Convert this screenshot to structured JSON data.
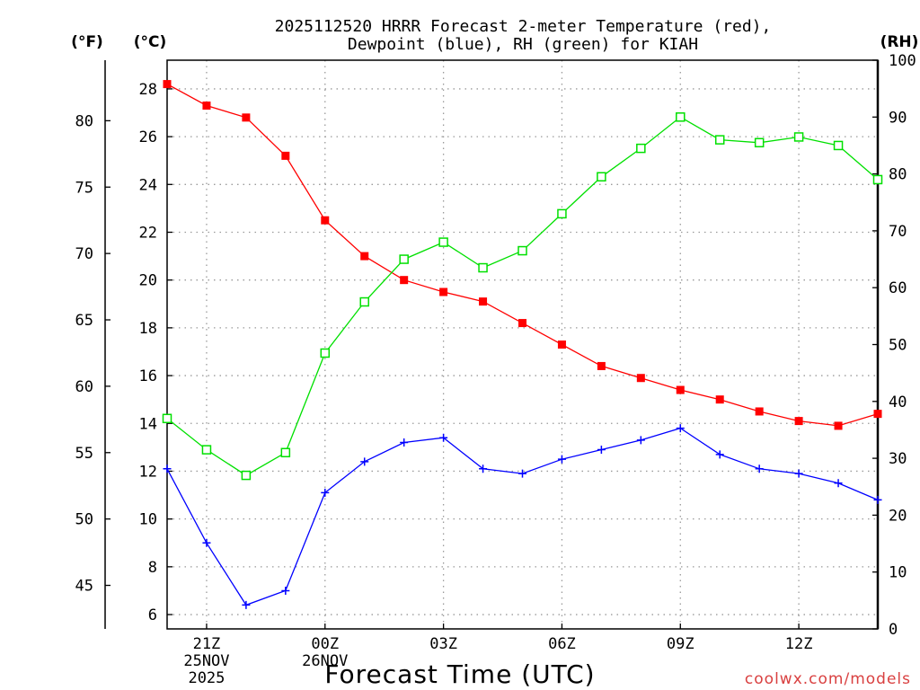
{
  "chart_data": {
    "type": "line",
    "title_lines": [
      "2025112520 HRRR Forecast 2-meter Temperature (red),",
      "Dewpoint (blue), RH (green) for KIAH"
    ],
    "xlabel": "Forecast Time (UTC)",
    "credit": "coolwx.com/models",
    "unit_labels": {
      "fahrenheit": "(°F)",
      "celsius": "(°C)",
      "rh": "(RH)"
    },
    "hours": [
      0,
      1,
      2,
      3,
      4,
      5,
      6,
      7,
      8,
      9,
      10,
      11,
      12,
      13,
      14,
      15,
      16,
      17,
      18
    ],
    "x_ticks": [
      {
        "hour": 1,
        "lines": [
          "21Z",
          "25NOV",
          "2025"
        ]
      },
      {
        "hour": 4,
        "lines": [
          "00Z",
          "26NOV"
        ]
      },
      {
        "hour": 7,
        "lines": [
          "03Z"
        ]
      },
      {
        "hour": 10,
        "lines": [
          "06Z"
        ]
      },
      {
        "hour": 13,
        "lines": [
          "09Z"
        ]
      },
      {
        "hour": 16,
        "lines": [
          "12Z"
        ]
      }
    ],
    "ylim_celsius": [
      5.4,
      29.2
    ],
    "ylim_rh": [
      0,
      100
    ],
    "celsius_ticks": [
      6,
      8,
      10,
      12,
      14,
      16,
      18,
      20,
      22,
      24,
      26,
      28
    ],
    "fahrenheit_ticks": [
      45,
      50,
      55,
      60,
      65,
      70,
      75,
      80
    ],
    "rh_ticks": [
      0,
      10,
      20,
      30,
      40,
      50,
      60,
      70,
      80,
      90,
      100
    ],
    "series": [
      {
        "name": "2-meter Temperature",
        "axis": "celsius",
        "color": "#ff0000",
        "marker": "filled-square",
        "values": [
          28.2,
          27.3,
          26.8,
          25.2,
          22.5,
          21.0,
          20.0,
          19.5,
          19.1,
          18.2,
          17.3,
          16.4,
          15.9,
          15.4,
          15.0,
          14.5,
          14.1,
          13.9,
          14.4
        ]
      },
      {
        "name": "Dewpoint",
        "axis": "celsius",
        "color": "#0000ff",
        "marker": "plus",
        "values": [
          12.1,
          9.0,
          6.4,
          7.0,
          11.1,
          12.4,
          13.2,
          13.4,
          12.1,
          11.9,
          12.5,
          12.9,
          13.3,
          13.8,
          12.7,
          12.1,
          11.9,
          11.5,
          10.8
        ]
      },
      {
        "name": "RH",
        "axis": "rh",
        "color": "#00e000",
        "marker": "open-square",
        "values": [
          37,
          31.5,
          27,
          31,
          48.5,
          57.5,
          65,
          68,
          63.5,
          66.5,
          73,
          79.5,
          84.5,
          90,
          86,
          85.5,
          86.5,
          85,
          79
        ]
      }
    ]
  }
}
